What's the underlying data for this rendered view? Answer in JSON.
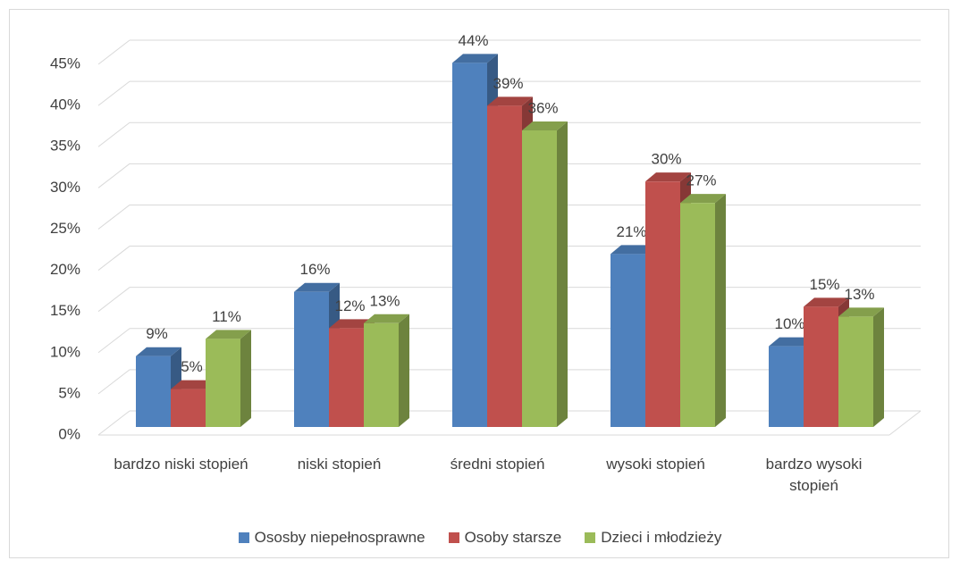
{
  "chart_data": {
    "type": "bar3d",
    "categories": [
      "bardzo niski stopień",
      "niski stopień",
      "średni stopień",
      "wysoki stopień",
      "bardzo wysoki stopień"
    ],
    "series": [
      {
        "name": "Ososby niepełnosprawne",
        "color": "#4f81bd",
        "values": [
          8.6,
          16.4,
          44.2,
          21,
          9.8
        ],
        "value_labels": [
          "9%",
          "16%",
          "44%",
          "21%",
          "10%"
        ]
      },
      {
        "name": "Osoby starsze",
        "color": "#c0504d",
        "values": [
          4.6,
          12,
          39,
          29.8,
          14.6
        ],
        "value_labels": [
          "5%",
          "12%",
          "39%",
          "30%",
          "15%"
        ]
      },
      {
        "name": "Dzieci i młodzieży",
        "color": "#9bbb59",
        "values": [
          10.7,
          12.6,
          36,
          27.2,
          13.4
        ],
        "value_labels": [
          "11%",
          "13%",
          "36%",
          "27%",
          "13%"
        ]
      }
    ],
    "ylim": [
      0,
      45
    ],
    "yticks": [
      {
        "value": 0,
        "label": "0%"
      },
      {
        "value": 5,
        "label": "5%"
      },
      {
        "value": 10,
        "label": "10%"
      },
      {
        "value": 15,
        "label": "15%"
      },
      {
        "value": 20,
        "label": "20%"
      },
      {
        "value": 25,
        "label": "25%"
      },
      {
        "value": 30,
        "label": "30%"
      },
      {
        "value": 35,
        "label": "35%"
      },
      {
        "value": 40,
        "label": "40%"
      },
      {
        "value": 45,
        "label": "45%"
      }
    ],
    "grid": true,
    "legend": "bottom"
  }
}
